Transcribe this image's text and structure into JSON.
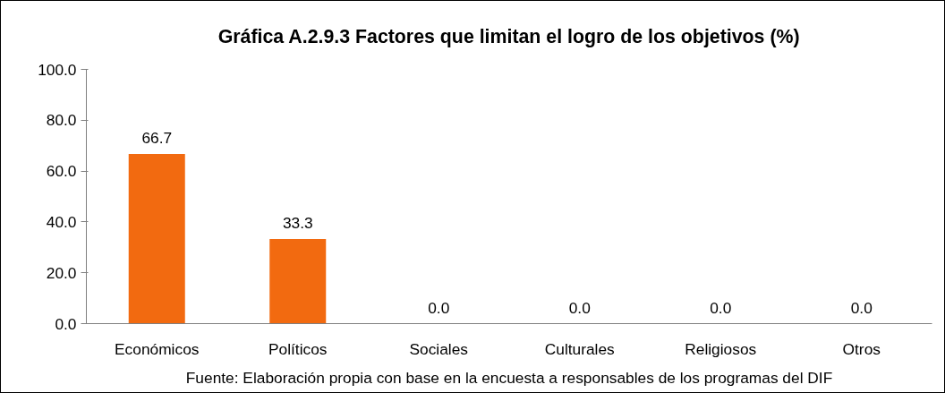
{
  "chart_data": {
    "type": "bar",
    "title": "Gráfica A.2.9.3 Factores que limitan el logro de los objetivos (%)",
    "categories": [
      "Económicos",
      "Políticos",
      "Sociales",
      "Culturales",
      "Religiosos",
      "Otros"
    ],
    "values": [
      66.7,
      33.3,
      0.0,
      0.0,
      0.0,
      0.0
    ],
    "value_labels": [
      "66.7",
      "33.3",
      "0.0",
      "0.0",
      "0.0",
      "0.0"
    ],
    "color": "#f26a10",
    "ylim": [
      0,
      100
    ],
    "yticks": [
      {
        "value": 0,
        "label": "0.0"
      },
      {
        "value": 20,
        "label": "20.0"
      },
      {
        "value": 40,
        "label": "40.0"
      },
      {
        "value": 60,
        "label": "60.0"
      },
      {
        "value": 80,
        "label": "80.0"
      },
      {
        "value": 100,
        "label": "100.0"
      }
    ],
    "grid": false,
    "annotations": [
      "Fuente: Elaboración propia con base en la encuesta a responsables de los programas del DIF"
    ]
  }
}
